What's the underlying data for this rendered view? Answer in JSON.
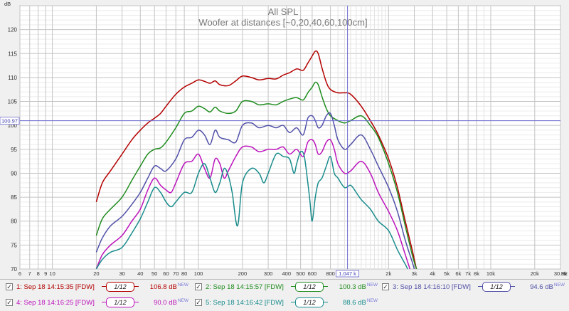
{
  "chart_data": {
    "type": "line",
    "title": "All SPL",
    "subtitle": "Woofer at distances [~0,20,40,60,100cm]",
    "ylabel": "dB",
    "xunit": "Hz",
    "xscale": "log",
    "xlim": [
      6,
      30000
    ],
    "ylim": [
      70,
      125
    ],
    "grid": true,
    "y_ticks": [
      70,
      75,
      80,
      85,
      90,
      95,
      100,
      105,
      110,
      115,
      120
    ],
    "x_ticks": [
      {
        "v": 6,
        "label": "6"
      },
      {
        "v": 7,
        "label": "7"
      },
      {
        "v": 8,
        "label": "8"
      },
      {
        "v": 9,
        "label": "9"
      },
      {
        "v": 10,
        "label": "10"
      },
      {
        "v": 20,
        "label": "20"
      },
      {
        "v": 30,
        "label": "30"
      },
      {
        "v": 40,
        "label": "40"
      },
      {
        "v": 50,
        "label": "50"
      },
      {
        "v": 60,
        "label": "60"
      },
      {
        "v": 70,
        "label": "70"
      },
      {
        "v": 80,
        "label": "80"
      },
      {
        "v": 100,
        "label": "100"
      },
      {
        "v": 200,
        "label": "200"
      },
      {
        "v": 300,
        "label": "300"
      },
      {
        "v": 400,
        "label": "400"
      },
      {
        "v": 500,
        "label": "500"
      },
      {
        "v": 600,
        "label": "600"
      },
      {
        "v": 800,
        "label": "800"
      },
      {
        "v": 2000,
        "label": "2k"
      },
      {
        "v": 3000,
        "label": "3k"
      },
      {
        "v": 4000,
        "label": "4k"
      },
      {
        "v": 5000,
        "label": "5k"
      },
      {
        "v": 6000,
        "label": "6k"
      },
      {
        "v": 7000,
        "label": "7k"
      },
      {
        "v": 8000,
        "label": "8k"
      },
      {
        "v": 10000,
        "label": "10k"
      },
      {
        "v": 20000,
        "label": "20k"
      },
      {
        "v": 30000,
        "label": "30.0k"
      }
    ],
    "x_minor": [
      900,
      1000,
      1100,
      1200,
      1300,
      1400,
      1500,
      1600,
      1700,
      1800,
      1900,
      9000
    ],
    "cursor": {
      "x": 1047,
      "x_label": "1.047 k",
      "y": 100.97,
      "y_label": "100.97"
    },
    "series": [
      {
        "name": "1: Sep 18 14:15:35 [FDW]",
        "color": "#b40000",
        "smoothing": "1/12",
        "level": "106.8 dB",
        "points": [
          [
            20,
            84
          ],
          [
            22,
            88
          ],
          [
            25,
            90.5
          ],
          [
            30,
            94
          ],
          [
            35,
            97
          ],
          [
            40,
            99
          ],
          [
            45,
            100.5
          ],
          [
            50,
            101.5
          ],
          [
            55,
            102.5
          ],
          [
            60,
            104
          ],
          [
            70,
            106.5
          ],
          [
            80,
            108
          ],
          [
            90,
            108.8
          ],
          [
            100,
            109.5
          ],
          [
            110,
            109.2
          ],
          [
            120,
            108.8
          ],
          [
            130,
            109.3
          ],
          [
            140,
            108.5
          ],
          [
            160,
            108.3
          ],
          [
            180,
            109.3
          ],
          [
            200,
            110.3
          ],
          [
            230,
            110
          ],
          [
            260,
            109.5
          ],
          [
            300,
            109.8
          ],
          [
            340,
            109.7
          ],
          [
            380,
            110.5
          ],
          [
            420,
            111
          ],
          [
            470,
            111.8
          ],
          [
            520,
            111.5
          ],
          [
            560,
            113
          ],
          [
            600,
            114.5
          ],
          [
            630,
            115.5
          ],
          [
            660,
            115
          ],
          [
            700,
            112
          ],
          [
            750,
            109
          ],
          [
            800,
            107.5
          ],
          [
            900,
            106.8
          ],
          [
            1000,
            106.8
          ],
          [
            1100,
            106.5
          ],
          [
            1300,
            104
          ],
          [
            1500,
            101
          ],
          [
            1700,
            98
          ],
          [
            2000,
            93
          ],
          [
            2300,
            87
          ],
          [
            2600,
            80
          ],
          [
            2900,
            74
          ],
          [
            3100,
            70
          ]
        ]
      },
      {
        "name": "2: Sep 18 14:15:57 [FDW]",
        "color": "#1f8c1f",
        "smoothing": "1/12",
        "level": "100.3 dB",
        "points": [
          [
            20,
            77
          ],
          [
            22,
            80.5
          ],
          [
            25,
            82.5
          ],
          [
            30,
            85
          ],
          [
            35,
            88.5
          ],
          [
            40,
            91.5
          ],
          [
            45,
            94
          ],
          [
            50,
            95
          ],
          [
            55,
            95.3
          ],
          [
            60,
            96.5
          ],
          [
            70,
            99.5
          ],
          [
            80,
            102.5
          ],
          [
            90,
            103
          ],
          [
            100,
            104
          ],
          [
            110,
            103.5
          ],
          [
            120,
            102.8
          ],
          [
            130,
            103.8
          ],
          [
            140,
            103
          ],
          [
            160,
            102.5
          ],
          [
            180,
            103
          ],
          [
            200,
            105
          ],
          [
            230,
            105
          ],
          [
            260,
            104.3
          ],
          [
            300,
            104.5
          ],
          [
            340,
            104.3
          ],
          [
            380,
            105
          ],
          [
            420,
            105.5
          ],
          [
            470,
            105.8
          ],
          [
            520,
            105.3
          ],
          [
            560,
            106.8
          ],
          [
            600,
            108
          ],
          [
            630,
            109
          ],
          [
            660,
            108.5
          ],
          [
            700,
            106
          ],
          [
            750,
            103.5
          ],
          [
            800,
            102
          ],
          [
            900,
            101
          ],
          [
            1000,
            100.5
          ],
          [
            1100,
            101
          ],
          [
            1300,
            102
          ],
          [
            1500,
            100
          ],
          [
            1700,
            97.5
          ],
          [
            2000,
            92
          ],
          [
            2300,
            86
          ],
          [
            2600,
            79
          ],
          [
            2900,
            73
          ],
          [
            3100,
            70
          ]
        ]
      },
      {
        "name": "3: Sep 18 14:16:10 [FDW]",
        "color": "#5050a8",
        "smoothing": "1/12",
        "level": "94.6 dB",
        "points": [
          [
            20,
            73.5
          ],
          [
            22,
            76.5
          ],
          [
            25,
            79
          ],
          [
            30,
            81
          ],
          [
            35,
            83.5
          ],
          [
            40,
            86
          ],
          [
            45,
            89
          ],
          [
            50,
            91.5
          ],
          [
            55,
            91
          ],
          [
            60,
            90.5
          ],
          [
            70,
            93
          ],
          [
            80,
            97
          ],
          [
            90,
            97.5
          ],
          [
            100,
            99
          ],
          [
            110,
            98
          ],
          [
            120,
            96
          ],
          [
            130,
            99
          ],
          [
            140,
            97.5
          ],
          [
            160,
            97
          ],
          [
            180,
            96.5
          ],
          [
            200,
            100
          ],
          [
            230,
            100.5
          ],
          [
            260,
            99.5
          ],
          [
            300,
            100
          ],
          [
            340,
            99.5
          ],
          [
            380,
            100
          ],
          [
            420,
            98.5
          ],
          [
            470,
            99.5
          ],
          [
            520,
            98
          ],
          [
            560,
            101.5
          ],
          [
            600,
            102
          ],
          [
            630,
            101
          ],
          [
            660,
            99.5
          ],
          [
            700,
            100
          ],
          [
            750,
            102
          ],
          [
            800,
            102.5
          ],
          [
            850,
            100
          ],
          [
            900,
            97
          ],
          [
            1000,
            95
          ],
          [
            1100,
            96
          ],
          [
            1300,
            98
          ],
          [
            1500,
            95
          ],
          [
            1700,
            91.5
          ],
          [
            2000,
            87
          ],
          [
            2300,
            82
          ],
          [
            2600,
            76
          ],
          [
            2900,
            71.5
          ],
          [
            3000,
            70
          ]
        ]
      },
      {
        "name": "4: Sep 18 14:16:25 [FDW]",
        "color": "#bc14bc",
        "smoothing": "1/12",
        "level": "90.0 dB",
        "points": [
          [
            20,
            70
          ],
          [
            22,
            73
          ],
          [
            25,
            75
          ],
          [
            30,
            77
          ],
          [
            35,
            80
          ],
          [
            40,
            82.5
          ],
          [
            45,
            86.5
          ],
          [
            50,
            89
          ],
          [
            55,
            87.5
          ],
          [
            60,
            86.5
          ],
          [
            65,
            86
          ],
          [
            70,
            88
          ],
          [
            80,
            92
          ],
          [
            90,
            92.5
          ],
          [
            100,
            94
          ],
          [
            110,
            91
          ],
          [
            120,
            89
          ],
          [
            130,
            93
          ],
          [
            140,
            92
          ],
          [
            150,
            89
          ],
          [
            160,
            90.5
          ],
          [
            180,
            93.5
          ],
          [
            200,
            95.5
          ],
          [
            230,
            95.5
          ],
          [
            260,
            94.5
          ],
          [
            300,
            95
          ],
          [
            340,
            95
          ],
          [
            380,
            95.5
          ],
          [
            420,
            94
          ],
          [
            470,
            95
          ],
          [
            520,
            93.5
          ],
          [
            560,
            96.5
          ],
          [
            600,
            97
          ],
          [
            630,
            96
          ],
          [
            660,
            94
          ],
          [
            700,
            94.5
          ],
          [
            750,
            96.5
          ],
          [
            800,
            97
          ],
          [
            850,
            95
          ],
          [
            900,
            92
          ],
          [
            1000,
            90
          ],
          [
            1100,
            90.5
          ],
          [
            1300,
            92.5
          ],
          [
            1500,
            90
          ],
          [
            1700,
            86
          ],
          [
            2000,
            82
          ],
          [
            2300,
            78
          ],
          [
            2600,
            73
          ],
          [
            2800,
            70
          ]
        ]
      },
      {
        "name": "5: Sep 18 14:16:42 [FDW]",
        "color": "#1a8c8c",
        "smoothing": "1/12",
        "level": "88.6 dB",
        "points": [
          [
            20,
            70
          ],
          [
            22,
            72
          ],
          [
            25,
            73.5
          ],
          [
            30,
            74.5
          ],
          [
            35,
            77.5
          ],
          [
            40,
            80.5
          ],
          [
            45,
            84
          ],
          [
            50,
            87
          ],
          [
            55,
            86
          ],
          [
            60,
            84
          ],
          [
            65,
            83
          ],
          [
            70,
            84
          ],
          [
            80,
            86
          ],
          [
            90,
            86
          ],
          [
            100,
            90
          ],
          [
            110,
            92
          ],
          [
            120,
            89
          ],
          [
            130,
            86
          ],
          [
            140,
            88
          ],
          [
            150,
            91
          ],
          [
            160,
            89.5
          ],
          [
            170,
            86
          ],
          [
            185,
            79
          ],
          [
            200,
            88
          ],
          [
            230,
            91
          ],
          [
            260,
            90
          ],
          [
            280,
            88
          ],
          [
            300,
            90
          ],
          [
            340,
            94
          ],
          [
            380,
            93.5
          ],
          [
            420,
            93
          ],
          [
            450,
            90
          ],
          [
            470,
            92
          ],
          [
            500,
            94.5
          ],
          [
            530,
            93.5
          ],
          [
            560,
            88
          ],
          [
            580,
            84
          ],
          [
            600,
            80
          ],
          [
            630,
            85
          ],
          [
            660,
            88
          ],
          [
            700,
            89
          ],
          [
            750,
            91.5
          ],
          [
            800,
            93.5
          ],
          [
            850,
            90
          ],
          [
            900,
            89
          ],
          [
            1000,
            87
          ],
          [
            1100,
            87.5
          ],
          [
            1200,
            86
          ],
          [
            1300,
            84.5
          ],
          [
            1500,
            82.5
          ],
          [
            1700,
            80
          ],
          [
            2000,
            78
          ],
          [
            2300,
            74
          ],
          [
            2600,
            71
          ],
          [
            2700,
            70
          ]
        ]
      }
    ]
  },
  "legend_new_tag": "NEW"
}
